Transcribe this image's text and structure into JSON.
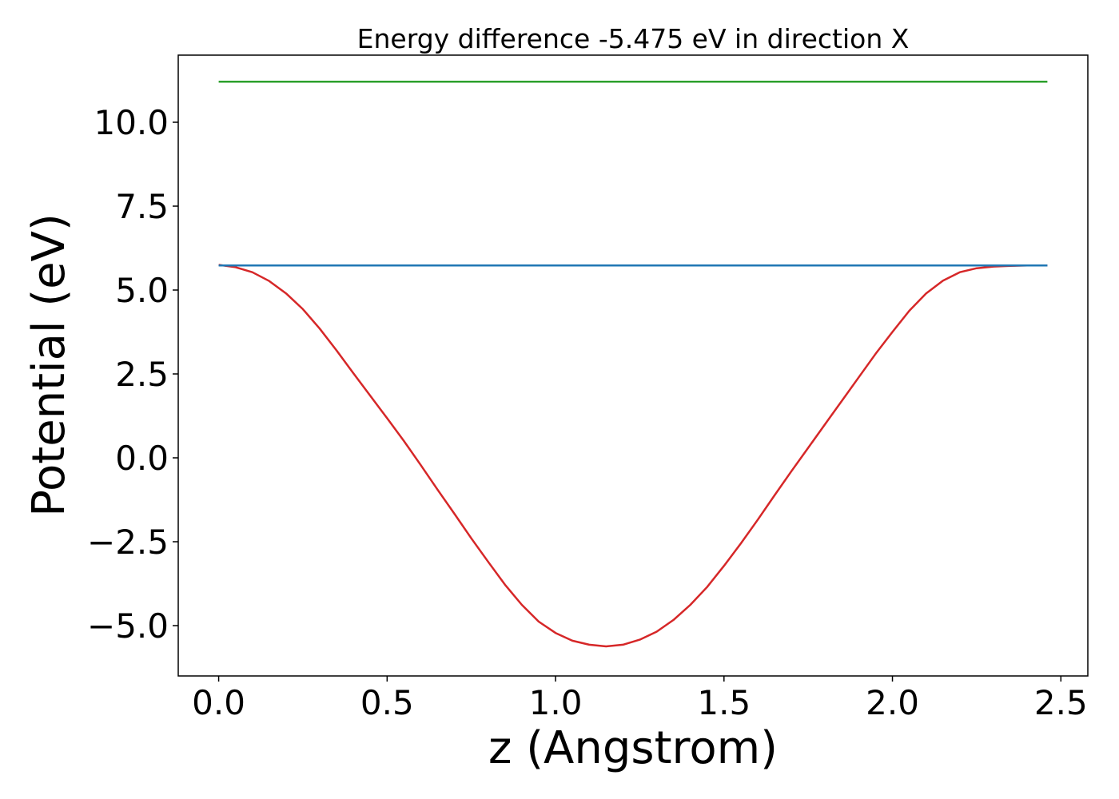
{
  "chart_data": {
    "type": "line",
    "title": "Energy difference -5.475 eV in direction X",
    "xlabel": "z (Angstrom)",
    "ylabel": "Potential (eV)",
    "xlim": [
      -0.12,
      2.58
    ],
    "ylim": [
      -6.5,
      12.0
    ],
    "x_ticks": [
      0.0,
      0.5,
      1.0,
      1.5,
      2.0,
      2.5
    ],
    "x_tick_labels": [
      "0.0",
      "0.5",
      "1.0",
      "1.5",
      "2.0",
      "2.5"
    ],
    "y_ticks": [
      -5.0,
      -2.5,
      0.0,
      2.5,
      5.0,
      7.5,
      10.0
    ],
    "y_tick_labels": [
      "−5.0",
      "−2.5",
      "0.0",
      "2.5",
      "5.0",
      "7.5",
      "10.0"
    ],
    "grid": false,
    "series": [
      {
        "color": "#d62728",
        "x": [
          0.0,
          0.05,
          0.1,
          0.15,
          0.2,
          0.25,
          0.3,
          0.35,
          0.4,
          0.45,
          0.5,
          0.55,
          0.6,
          0.65,
          0.7,
          0.75,
          0.8,
          0.85,
          0.9,
          0.95,
          1.0,
          1.05,
          1.1,
          1.15,
          1.2,
          1.25,
          1.3,
          1.35,
          1.4,
          1.45,
          1.5,
          1.55,
          1.6,
          1.65,
          1.7,
          1.75,
          1.8,
          1.85,
          1.9,
          1.95,
          2.0,
          2.05,
          2.1,
          2.15,
          2.2,
          2.25,
          2.3,
          2.35,
          2.4,
          2.45,
          2.46
        ],
        "y": [
          5.75,
          5.68,
          5.53,
          5.27,
          4.9,
          4.43,
          3.85,
          3.2,
          2.52,
          1.85,
          1.18,
          0.5,
          -0.22,
          -0.95,
          -1.67,
          -2.4,
          -3.1,
          -3.78,
          -4.38,
          -4.88,
          -5.22,
          -5.45,
          -5.57,
          -5.62,
          -5.57,
          -5.42,
          -5.18,
          -4.83,
          -4.38,
          -3.85,
          -3.22,
          -2.55,
          -1.85,
          -1.12,
          -0.4,
          0.3,
          1.0,
          1.7,
          2.4,
          3.1,
          3.75,
          4.38,
          4.9,
          5.28,
          5.53,
          5.65,
          5.7,
          5.72,
          5.73,
          5.73,
          5.73
        ]
      },
      {
        "color": "#1f77b4",
        "x": [
          0.0,
          2.46
        ],
        "y": [
          5.73,
          5.73
        ]
      },
      {
        "color": "#2ca02c",
        "x": [
          0.0,
          2.46
        ],
        "y": [
          11.21,
          11.21
        ]
      }
    ]
  }
}
